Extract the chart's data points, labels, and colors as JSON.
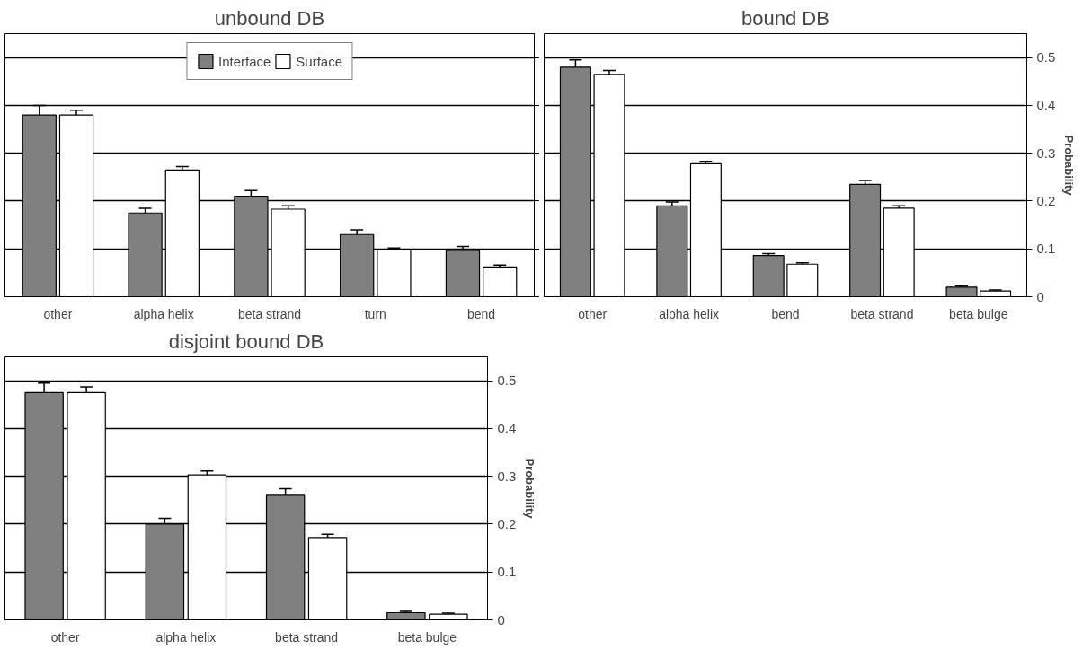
{
  "chart_data": [
    {
      "type": "bar",
      "title": "unbound DB",
      "categories": [
        "other",
        "alpha helix",
        "beta strand",
        "turn",
        "bend"
      ],
      "ylim": [
        0,
        0.55
      ],
      "yticks": [
        0,
        0.1,
        0.2,
        0.3,
        0.4,
        0.5
      ],
      "grid": "y",
      "legend": "top",
      "tick_labels": "x",
      "series": [
        {
          "name": "Interface",
          "color": "#808080",
          "values": [
            0.38,
            0.175,
            0.21,
            0.13,
            0.097
          ],
          "errors": [
            0.02,
            0.01,
            0.012,
            0.01,
            0.008
          ]
        },
        {
          "name": "Surface",
          "color": "#ffffff",
          "values": [
            0.38,
            0.265,
            0.183,
            0.098,
            0.062
          ],
          "errors": [
            0.01,
            0.007,
            0.007,
            0.004,
            0.004
          ]
        }
      ]
    },
    {
      "type": "bar",
      "title": "bound DB",
      "ylabel": "Probability",
      "categories": [
        "other",
        "alpha helix",
        "bend",
        "beta strand",
        "beta bulge"
      ],
      "ylim": [
        0,
        0.55
      ],
      "yticks": [
        0,
        0.1,
        0.2,
        0.3,
        0.4,
        0.5
      ],
      "grid": "y",
      "series": [
        {
          "color": "#808080",
          "values": [
            0.48,
            0.19,
            0.086,
            0.235,
            0.02
          ],
          "errors": [
            0.015,
            0.008,
            0.004,
            0.008,
            0.002
          ]
        },
        {
          "color": "#ffffff",
          "values": [
            0.465,
            0.278,
            0.068,
            0.185,
            0.012
          ],
          "errors": [
            0.008,
            0.005,
            0.003,
            0.005,
            0.002
          ]
        }
      ]
    },
    {
      "type": "bar",
      "title": "disjoint bound DB",
      "ylabel": "Probability",
      "categories": [
        "other",
        "alpha helix",
        "beta strand",
        "beta bulge"
      ],
      "ylim": [
        0,
        0.55
      ],
      "yticks": [
        0,
        0.1,
        0.2,
        0.3,
        0.4,
        0.5
      ],
      "grid": "y",
      "series": [
        {
          "color": "#808080",
          "values": [
            0.475,
            0.2,
            0.262,
            0.015
          ],
          "errors": [
            0.02,
            0.012,
            0.012,
            0.003
          ]
        },
        {
          "color": "#ffffff",
          "values": [
            0.475,
            0.303,
            0.172,
            0.012
          ],
          "errors": [
            0.012,
            0.008,
            0.007,
            0.002
          ]
        }
      ]
    }
  ]
}
